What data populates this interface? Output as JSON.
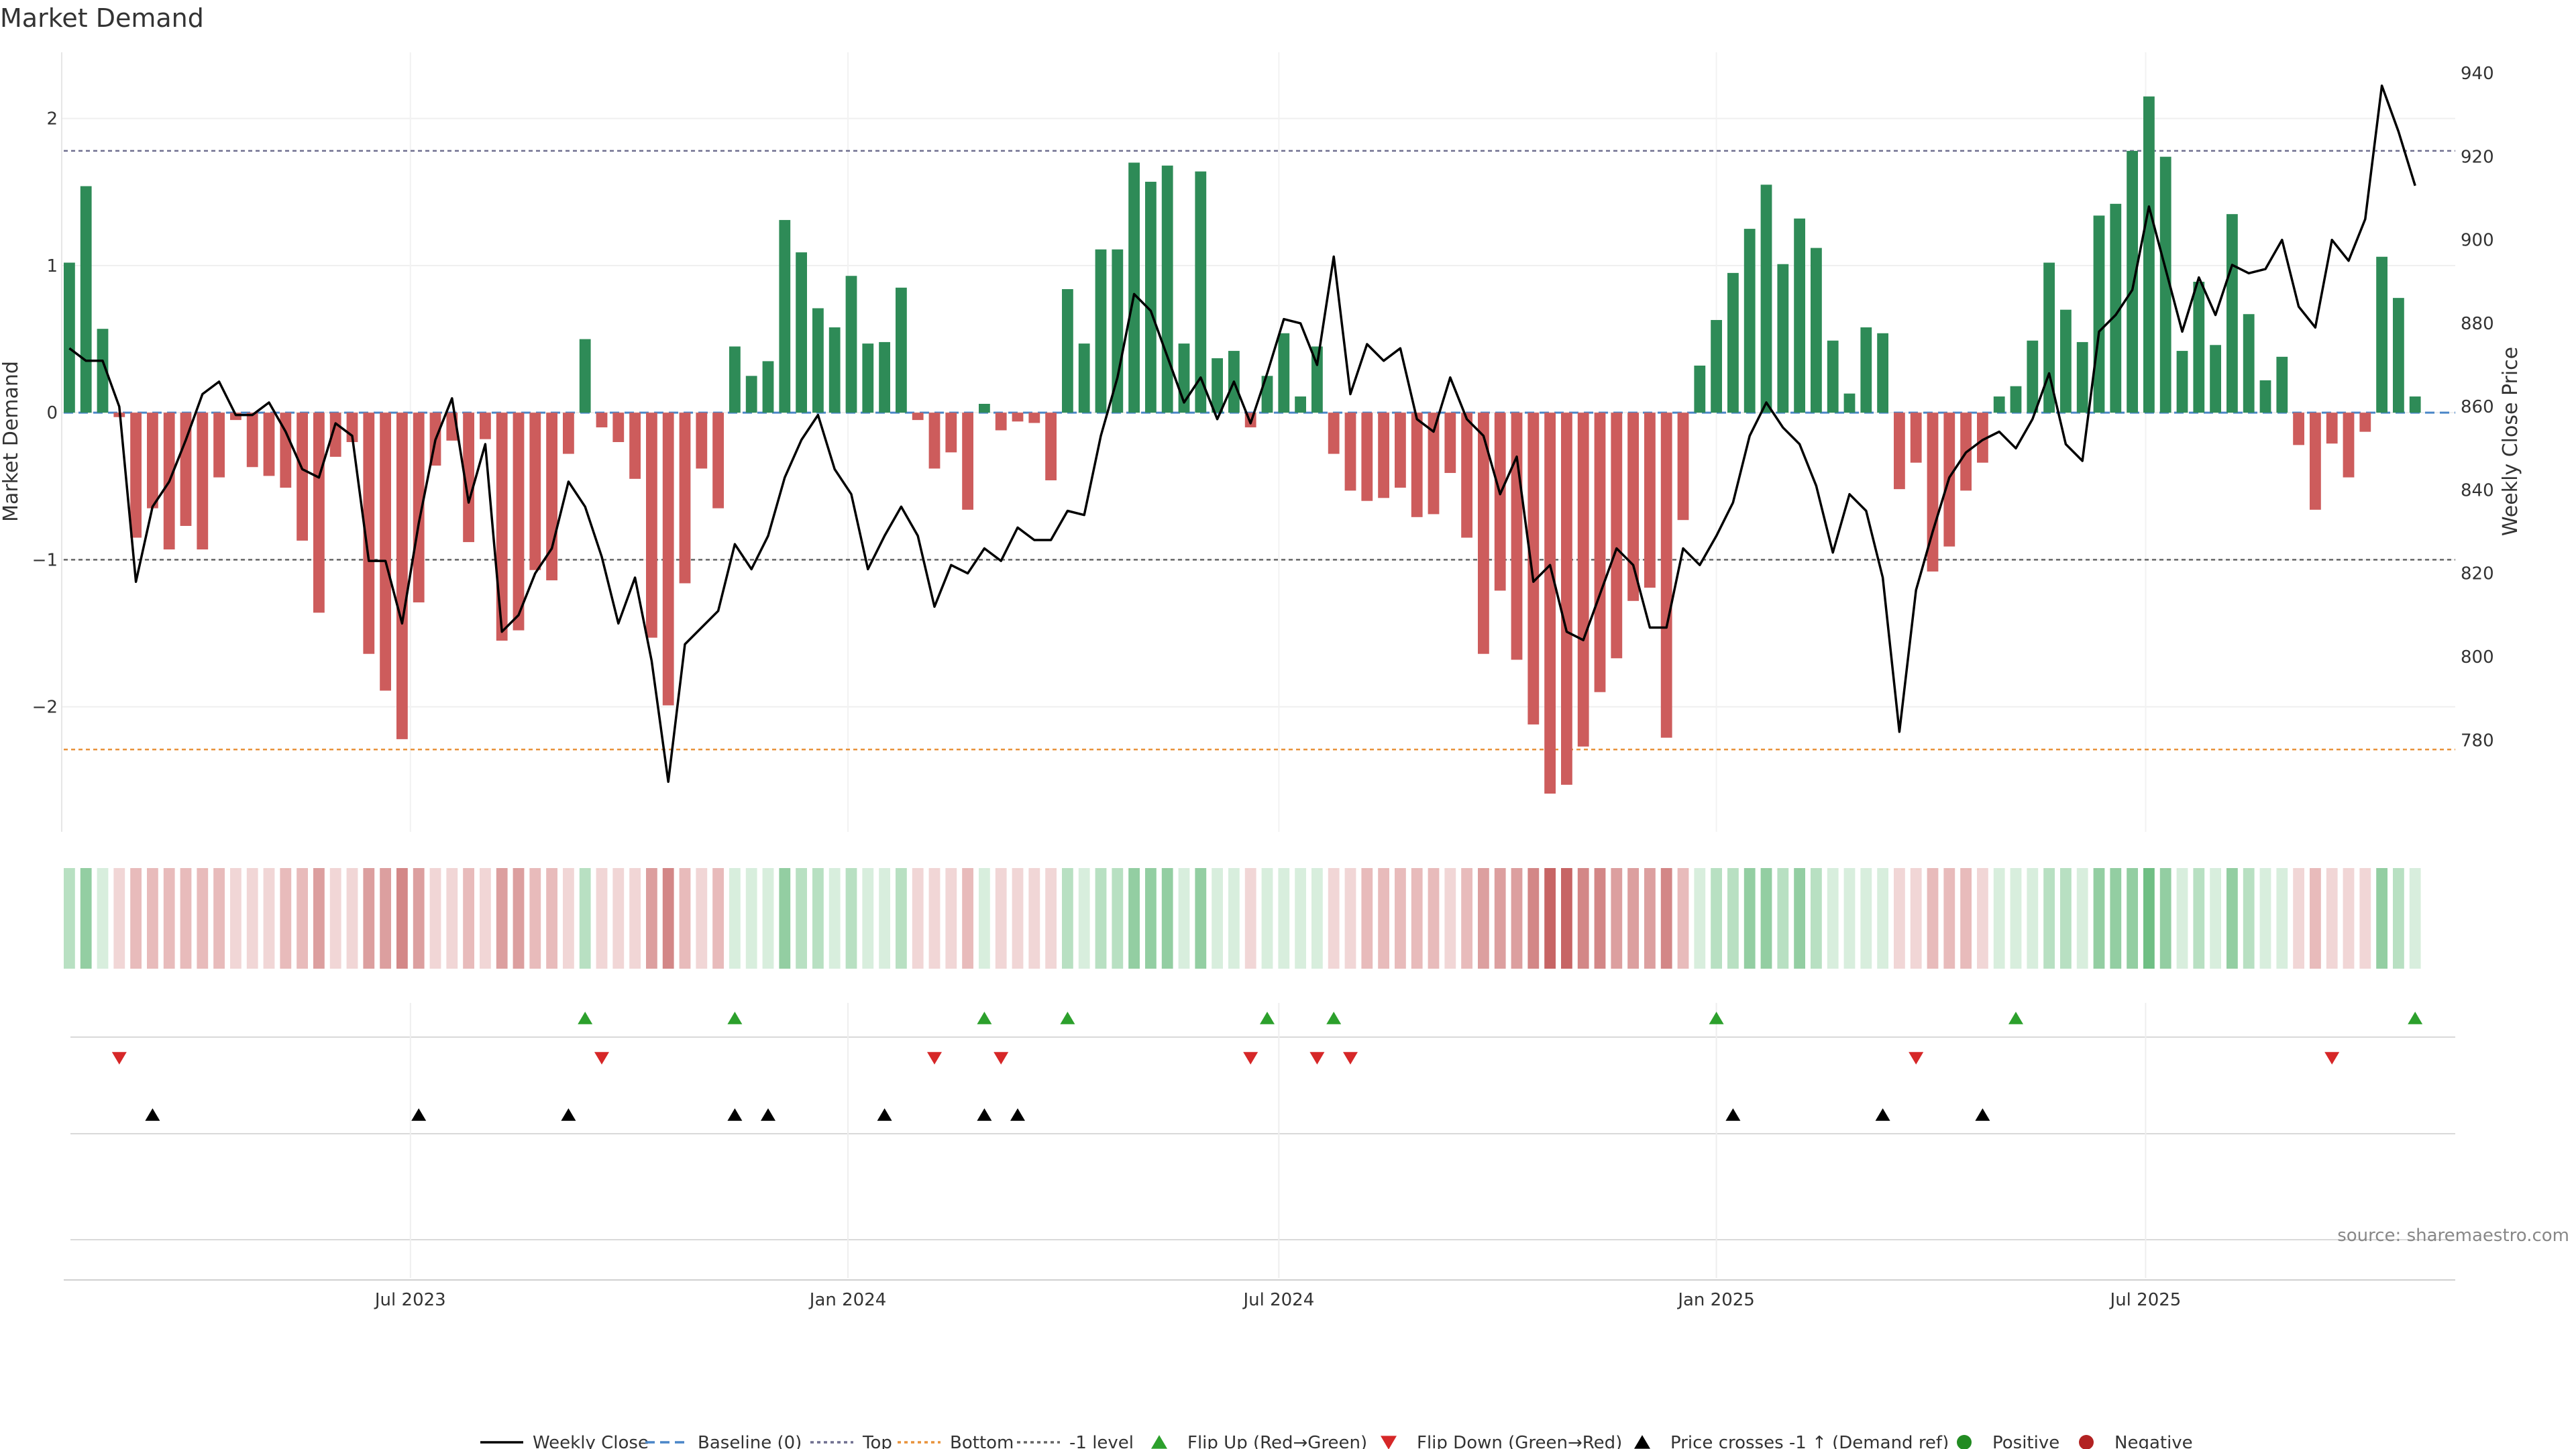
{
  "chart_data": {
    "type": "bar",
    "title": "Market Demand",
    "ylabel_left": "Market Demand",
    "ylabel_right": "Weekly Close Price",
    "ylim_left": [
      -2.85,
      2.45
    ],
    "ylim_right": [
      758,
      945
    ],
    "left_ticks": [
      2,
      1,
      0,
      -1,
      -2
    ],
    "left_tick_labels": [
      "2",
      "1",
      "0",
      "−1",
      "−2"
    ],
    "right_ticks": [
      940,
      920,
      900,
      880,
      860,
      840,
      820,
      800,
      780
    ],
    "right_tick_labels": [
      "940",
      "920",
      "900",
      "880",
      "860",
      "840",
      "820",
      "800",
      "780"
    ],
    "x_tick_labels": [
      "Jul 2023",
      "Jan 2024",
      "Jul 2024",
      "Jan 2025",
      "Jul 2025"
    ],
    "x_tick_index": [
      20.5,
      46.8,
      72.7,
      99,
      124.8
    ],
    "reference_lines": {
      "top": 1.78,
      "bottom": -2.29,
      "minus_one": -1.0,
      "baseline": 0
    },
    "demand": [
      1.02,
      1.54,
      0.57,
      -0.03,
      -0.85,
      -0.65,
      -0.93,
      -0.77,
      -0.93,
      -0.44,
      -0.05,
      -0.37,
      -0.43,
      -0.51,
      -0.87,
      -1.36,
      -0.3,
      -0.2,
      -1.64,
      -1.89,
      -2.22,
      -1.29,
      -0.36,
      -0.19,
      -0.88,
      -0.18,
      -1.55,
      -1.48,
      -1.07,
      -1.14,
      -0.28,
      0.5,
      -0.1,
      -0.2,
      -0.45,
      -1.53,
      -1.99,
      -1.16,
      -0.38,
      -0.65,
      0.45,
      0.25,
      0.35,
      1.31,
      1.09,
      0.71,
      0.58,
      0.93,
      0.47,
      0.48,
      0.85,
      -0.05,
      -0.38,
      -0.27,
      -0.66,
      0.06,
      -0.12,
      -0.06,
      -0.07,
      -0.46,
      0.84,
      0.47,
      1.11,
      1.11,
      1.7,
      1.57,
      1.68,
      0.47,
      1.64,
      0.37,
      0.42,
      -0.1,
      0.25,
      0.54,
      0.11,
      0.45,
      -0.28,
      -0.53,
      -0.6,
      -0.58,
      -0.51,
      -0.71,
      -0.69,
      -0.41,
      -0.85,
      -1.64,
      -1.21,
      -1.68,
      -2.12,
      -2.59,
      -2.53,
      -2.27,
      -1.9,
      -1.67,
      -1.28,
      -1.19,
      -2.21,
      -0.73,
      0.32,
      0.63,
      0.95,
      1.25,
      1.55,
      1.01,
      1.32,
      1.12,
      0.49,
      0.13,
      0.58,
      0.54,
      -0.52,
      -0.34,
      -1.08,
      -0.91,
      -0.53,
      -0.34,
      0.11,
      0.18,
      0.49,
      1.02,
      0.7,
      0.48,
      1.34,
      1.42,
      1.78,
      2.15,
      1.74,
      0.42,
      0.89,
      0.46,
      1.35,
      0.67,
      0.22,
      0.38,
      -0.22,
      -0.66,
      -0.21,
      -0.44,
      -0.13,
      1.06,
      0.78,
      0.11
    ],
    "weekly_close": [
      874,
      871,
      871,
      860,
      818,
      836,
      842,
      852,
      863,
      866,
      858,
      858,
      861,
      854,
      845,
      843,
      856,
      853,
      823,
      823,
      808,
      832,
      852,
      862,
      837,
      851,
      806,
      810,
      820,
      826,
      842,
      836,
      824,
      808,
      819,
      799,
      770,
      803,
      807,
      811,
      827,
      821,
      829,
      843,
      852,
      858,
      845,
      839,
      821,
      829,
      836,
      829,
      812,
      822,
      820,
      826,
      823,
      831,
      828,
      828,
      835,
      834,
      853,
      867,
      887,
      883,
      872,
      861,
      867,
      857,
      866,
      856,
      868,
      881,
      880,
      870,
      896,
      863,
      875,
      871,
      874,
      857,
      854,
      867,
      857,
      853,
      839,
      848,
      818,
      822,
      806,
      804,
      815,
      826,
      822,
      807,
      807,
      826,
      822,
      829,
      837,
      853,
      861,
      855,
      851,
      841,
      825,
      839,
      835,
      819,
      782,
      816,
      830,
      843,
      849,
      852,
      854,
      850,
      857,
      868,
      851,
      847,
      878,
      882,
      888,
      908,
      893,
      878,
      891,
      882,
      894,
      892,
      893,
      900,
      884,
      879,
      900,
      895,
      905,
      937,
      926,
      913
    ],
    "strip_levels": [
      2,
      3,
      1,
      -1,
      -2,
      -2,
      -2,
      -2,
      -2,
      -2,
      -1,
      -1,
      -1,
      -2,
      -2,
      -3,
      -1,
      -1,
      -3,
      -3,
      -4,
      -3,
      -1,
      -1,
      -2,
      -1,
      -3,
      -3,
      -2,
      -2,
      -1,
      2,
      -1,
      -1,
      -1,
      -3,
      -4,
      -2,
      -1,
      -2,
      1,
      1,
      1,
      3,
      2,
      2,
      1,
      2,
      1,
      1,
      2,
      -1,
      -1,
      -1,
      -2,
      1,
      -1,
      -1,
      -1,
      -1,
      2,
      1,
      2,
      2,
      3,
      3,
      3,
      1,
      3,
      1,
      1,
      -1,
      1,
      1,
      1,
      1,
      -1,
      -1,
      -2,
      -2,
      -2,
      -2,
      -2,
      -1,
      -2,
      -3,
      -3,
      -3,
      -4,
      -5,
      -5,
      -4,
      -4,
      -3,
      -3,
      -3,
      -4,
      -2,
      1,
      2,
      2,
      3,
      3,
      2,
      3,
      2,
      1,
      1,
      1,
      1,
      -1,
      -1,
      -2,
      -2,
      -2,
      -1,
      1,
      1,
      1,
      2,
      2,
      1,
      3,
      3,
      3,
      4,
      3,
      1,
      2,
      1,
      3,
      2,
      1,
      1,
      -1,
      -2,
      -1,
      -1,
      -1,
      3,
      2,
      1
    ],
    "flip_up_index": [
      31,
      40,
      55,
      60,
      72,
      76,
      99,
      117,
      141
    ],
    "flip_down_index": [
      3,
      32,
      52,
      56,
      71,
      75,
      77,
      111,
      136
    ],
    "price_cross_index": [
      5,
      21,
      30,
      40,
      42,
      49,
      55,
      57,
      100,
      109,
      115
    ],
    "legend": [
      "Weekly Close",
      "Baseline (0)",
      "Top",
      "Bottom",
      "-1 level",
      "Flip Up (Red→Green)",
      "Flip Down (Green→Red)",
      "Price crosses -1 ↑ (Demand ref)",
      "Positive",
      "Negative"
    ],
    "source": "source: sharemaestro.com"
  },
  "colors": {
    "positive": "#2e8b57",
    "negative": "#cd5c5c",
    "price": "#000000",
    "baseline": "#4a86c8",
    "top": "#6f6f8f",
    "bottom": "#e8923a",
    "minus_one": "#666666",
    "flip_up": "#2ca02c",
    "flip_down": "#d62728",
    "cross": "#000000",
    "legend_positive": "#228b22",
    "legend_negative": "#b22222"
  }
}
